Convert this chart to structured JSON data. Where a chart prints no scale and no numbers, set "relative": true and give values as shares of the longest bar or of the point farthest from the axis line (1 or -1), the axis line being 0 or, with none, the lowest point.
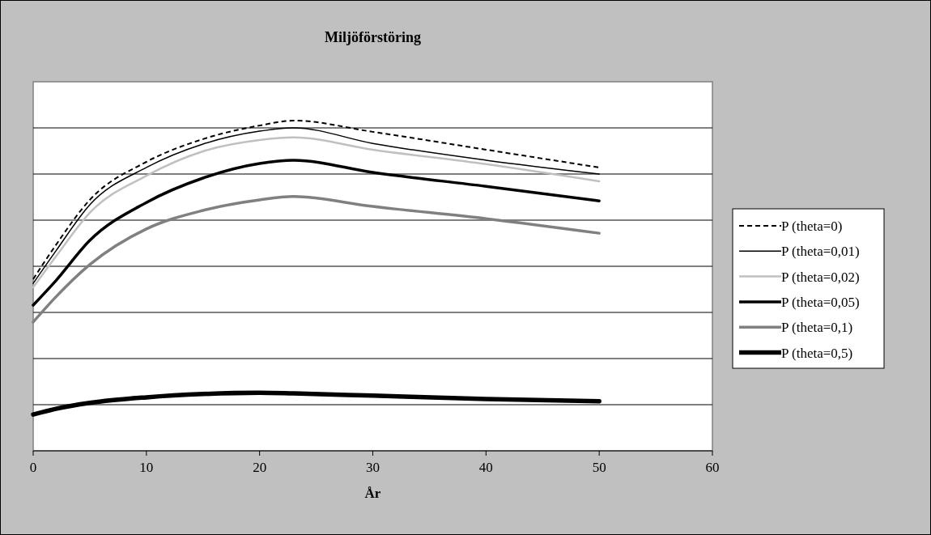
{
  "chart_data": {
    "type": "line",
    "title": "Miljöförstöring",
    "xlabel": "År",
    "relative": true,
    "x": [
      0,
      2,
      5,
      10,
      15,
      20,
      23,
      30,
      40,
      50
    ],
    "xlim": [
      0,
      60
    ],
    "xticks": [
      0,
      10,
      20,
      30,
      40,
      50,
      60
    ],
    "grid": "y",
    "legend": "right",
    "marker": "none",
    "series": [
      {
        "name": "P (theta=0)",
        "color": "#000000",
        "line_style": "dashed",
        "values": [
          0.52,
          0.623,
          0.76,
          0.875,
          0.944,
          0.985,
          1.0,
          0.966,
          0.912,
          0.858
        ]
      },
      {
        "name": "P (theta=0,01)",
        "color": "#000000",
        "line_style": "solid",
        "values": [
          0.507,
          0.605,
          0.745,
          0.858,
          0.929,
          0.968,
          0.978,
          0.931,
          0.88,
          0.838
        ]
      },
      {
        "name": "P (theta=0,02)",
        "color": "#c0c0c0",
        "line_style": "solid",
        "values": [
          0.495,
          0.588,
          0.721,
          0.833,
          0.907,
          0.941,
          0.949,
          0.912,
          0.868,
          0.816
        ]
      },
      {
        "name": "P (theta=0,05)",
        "color": "#000000",
        "line_style": "solid",
        "values": [
          0.441,
          0.515,
          0.637,
          0.752,
          0.826,
          0.87,
          0.88,
          0.843,
          0.801,
          0.757
        ]
      },
      {
        "name": "P (theta=0,1)",
        "color": "#808080",
        "line_style": "solid",
        "values": [
          0.39,
          0.466,
          0.564,
          0.672,
          0.728,
          0.76,
          0.77,
          0.74,
          0.703,
          0.659
        ]
      },
      {
        "name": "P (theta=0,5)",
        "color": "#000000",
        "line_style": "solid",
        "values": [
          0.11,
          0.127,
          0.145,
          0.162,
          0.172,
          0.176,
          0.174,
          0.167,
          0.157,
          0.15
        ]
      }
    ]
  }
}
